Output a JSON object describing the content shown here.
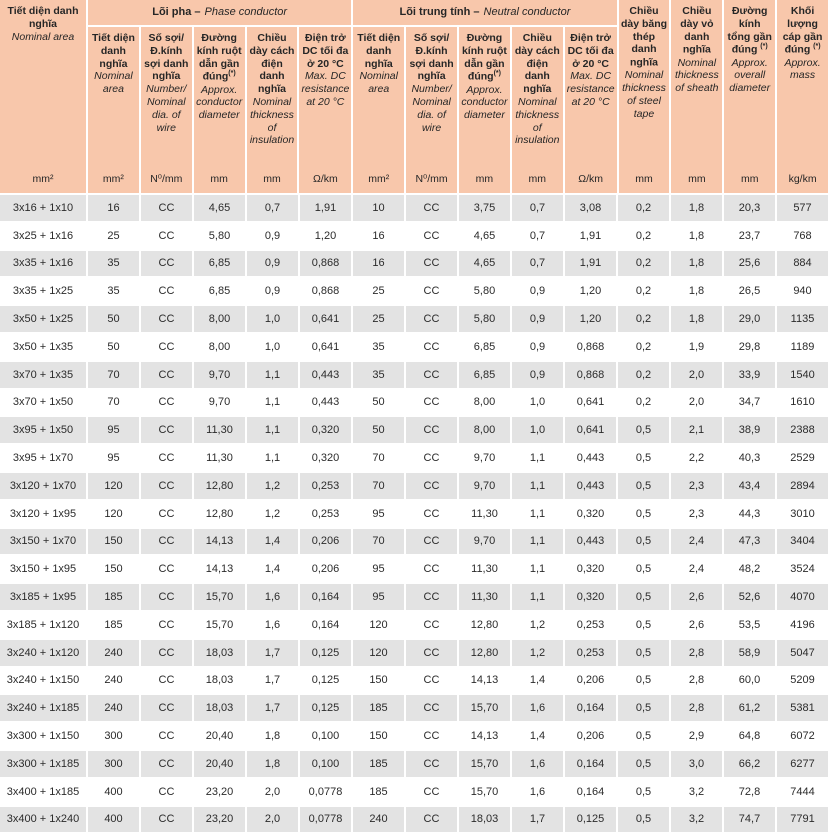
{
  "colors": {
    "header_bg": "#f8c7ab",
    "row_alt_bg": "#e3e3e3",
    "row_bg": "#ffffff",
    "separator": "#ffffff",
    "text": "#262626"
  },
  "table": {
    "corner": {
      "vi": "Tiết diện danh nghĩa",
      "en": "Nominal area",
      "unit": "mm²"
    },
    "groups": [
      {
        "vi": "Lõi pha –",
        "en": "Phase conductor"
      },
      {
        "vi": "Lõi trung tính –",
        "en": "Neutral conductor"
      }
    ],
    "phase_cols": [
      {
        "vi": "Tiết diện danh nghĩa",
        "sup": "",
        "en": "Nominal area",
        "unit": "mm²"
      },
      {
        "vi": "Số sợi/ Đ.kính sợi danh nghĩa",
        "sup": "",
        "en": "Number/ Nominal dia. of wire",
        "unit": "N⁰/mm"
      },
      {
        "vi": "Đường kính ruột dẫn gần đúng",
        "sup": "(*)",
        "en": "Approx. conductor diameter",
        "unit": "mm"
      },
      {
        "vi": "Chiều dày cách điện danh nghĩa",
        "sup": "",
        "en": "Nominal thickness of insulation",
        "unit": "mm"
      },
      {
        "vi": "Điện trở DC tối đa ở 20 °C",
        "sup": "",
        "en": "Max. DC resistance at 20 °C",
        "unit": "Ω/km"
      }
    ],
    "neutral_cols": [
      {
        "vi": "Tiết diện danh nghĩa",
        "sup": "",
        "en": "Nominal area",
        "unit": "mm²"
      },
      {
        "vi": "Số sợi/ Đ.kính sợi danh nghĩa",
        "sup": "",
        "en": "Number/ Nominal dia. of wire",
        "unit": "N⁰/mm"
      },
      {
        "vi": "Đường kính ruột dẫn gần đúng",
        "sup": "(*)",
        "en": "Approx. conductor diameter",
        "unit": "mm"
      },
      {
        "vi": "Chiều dày cách điện danh nghĩa",
        "sup": "",
        "en": "Nominal thickness of insulation",
        "unit": "mm"
      },
      {
        "vi": "Điện trở DC tối đa ở 20 °C",
        "sup": "",
        "en": "Max. DC resistance at 20 °C",
        "unit": "Ω/km"
      }
    ],
    "outer_cols": [
      {
        "vi": "Chiều dày băng thép danh nghĩa",
        "sup": "",
        "en": "Nominal thickness of steel tape",
        "unit": "mm"
      },
      {
        "vi": "Chiều dày vỏ danh nghĩa",
        "sup": "",
        "en": "Nominal thickness of sheath",
        "unit": "mm"
      },
      {
        "vi": "Đường kính tổng gần đúng",
        "sup": "(*)",
        "en": "Approx. overall diameter",
        "unit": "mm"
      },
      {
        "vi": "Khối lượng cáp gần đúng",
        "sup": "(*)",
        "en": "Approx. mass",
        "unit": "kg/km"
      }
    ],
    "rows": [
      [
        "3x16 + 1x10",
        "16",
        "CC",
        "4,65",
        "0,7",
        "1,91",
        "10",
        "CC",
        "3,75",
        "0,7",
        "3,08",
        "0,2",
        "1,8",
        "20,3",
        "577"
      ],
      [
        "3x25 + 1x16",
        "25",
        "CC",
        "5,80",
        "0,9",
        "1,20",
        "16",
        "CC",
        "4,65",
        "0,7",
        "1,91",
        "0,2",
        "1,8",
        "23,7",
        "768"
      ],
      [
        "3x35 + 1x16",
        "35",
        "CC",
        "6,85",
        "0,9",
        "0,868",
        "16",
        "CC",
        "4,65",
        "0,7",
        "1,91",
        "0,2",
        "1,8",
        "25,6",
        "884"
      ],
      [
        "3x35 + 1x25",
        "35",
        "CC",
        "6,85",
        "0,9",
        "0,868",
        "25",
        "CC",
        "5,80",
        "0,9",
        "1,20",
        "0,2",
        "1,8",
        "26,5",
        "940"
      ],
      [
        "3x50 + 1x25",
        "50",
        "CC",
        "8,00",
        "1,0",
        "0,641",
        "25",
        "CC",
        "5,80",
        "0,9",
        "1,20",
        "0,2",
        "1,8",
        "29,0",
        "1135"
      ],
      [
        "3x50 + 1x35",
        "50",
        "CC",
        "8,00",
        "1,0",
        "0,641",
        "35",
        "CC",
        "6,85",
        "0,9",
        "0,868",
        "0,2",
        "1,9",
        "29,8",
        "1189"
      ],
      [
        "3x70 + 1x35",
        "70",
        "CC",
        "9,70",
        "1,1",
        "0,443",
        "35",
        "CC",
        "6,85",
        "0,9",
        "0,868",
        "0,2",
        "2,0",
        "33,9",
        "1540"
      ],
      [
        "3x70 + 1x50",
        "70",
        "CC",
        "9,70",
        "1,1",
        "0,443",
        "50",
        "CC",
        "8,00",
        "1,0",
        "0,641",
        "0,2",
        "2,0",
        "34,7",
        "1610"
      ],
      [
        "3x95 + 1x50",
        "95",
        "CC",
        "11,30",
        "1,1",
        "0,320",
        "50",
        "CC",
        "8,00",
        "1,0",
        "0,641",
        "0,5",
        "2,1",
        "38,9",
        "2388"
      ],
      [
        "3x95 + 1x70",
        "95",
        "CC",
        "11,30",
        "1,1",
        "0,320",
        "70",
        "CC",
        "9,70",
        "1,1",
        "0,443",
        "0,5",
        "2,2",
        "40,3",
        "2529"
      ],
      [
        "3x120 + 1x70",
        "120",
        "CC",
        "12,80",
        "1,2",
        "0,253",
        "70",
        "CC",
        "9,70",
        "1,1",
        "0,443",
        "0,5",
        "2,3",
        "43,4",
        "2894"
      ],
      [
        "3x120 + 1x95",
        "120",
        "CC",
        "12,80",
        "1,2",
        "0,253",
        "95",
        "CC",
        "11,30",
        "1,1",
        "0,320",
        "0,5",
        "2,3",
        "44,3",
        "3010"
      ],
      [
        "3x150 + 1x70",
        "150",
        "CC",
        "14,13",
        "1,4",
        "0,206",
        "70",
        "CC",
        "9,70",
        "1,1",
        "0,443",
        "0,5",
        "2,4",
        "47,3",
        "3404"
      ],
      [
        "3x150 + 1x95",
        "150",
        "CC",
        "14,13",
        "1,4",
        "0,206",
        "95",
        "CC",
        "11,30",
        "1,1",
        "0,320",
        "0,5",
        "2,4",
        "48,2",
        "3524"
      ],
      [
        "3x185 + 1x95",
        "185",
        "CC",
        "15,70",
        "1,6",
        "0,164",
        "95",
        "CC",
        "11,30",
        "1,1",
        "0,320",
        "0,5",
        "2,6",
        "52,6",
        "4070"
      ],
      [
        "3x185 + 1x120",
        "185",
        "CC",
        "15,70",
        "1,6",
        "0,164",
        "120",
        "CC",
        "12,80",
        "1,2",
        "0,253",
        "0,5",
        "2,6",
        "53,5",
        "4196"
      ],
      [
        "3x240 + 1x120",
        "240",
        "CC",
        "18,03",
        "1,7",
        "0,125",
        "120",
        "CC",
        "12,80",
        "1,2",
        "0,253",
        "0,5",
        "2,8",
        "58,9",
        "5047"
      ],
      [
        "3x240 + 1x150",
        "240",
        "CC",
        "18,03",
        "1,7",
        "0,125",
        "150",
        "CC",
        "14,13",
        "1,4",
        "0,206",
        "0,5",
        "2,8",
        "60,0",
        "5209"
      ],
      [
        "3x240 + 1x185",
        "240",
        "CC",
        "18,03",
        "1,7",
        "0,125",
        "185",
        "CC",
        "15,70",
        "1,6",
        "0,164",
        "0,5",
        "2,8",
        "61,2",
        "5381"
      ],
      [
        "3x300 + 1x150",
        "300",
        "CC",
        "20,40",
        "1,8",
        "0,100",
        "150",
        "CC",
        "14,13",
        "1,4",
        "0,206",
        "0,5",
        "2,9",
        "64,8",
        "6072"
      ],
      [
        "3x300 + 1x185",
        "300",
        "CC",
        "20,40",
        "1,8",
        "0,100",
        "185",
        "CC",
        "15,70",
        "1,6",
        "0,164",
        "0,5",
        "3,0",
        "66,2",
        "6277"
      ],
      [
        "3x400 + 1x185",
        "400",
        "CC",
        "23,20",
        "2,0",
        "0,0778",
        "185",
        "CC",
        "15,70",
        "1,6",
        "0,164",
        "0,5",
        "3,2",
        "72,8",
        "7444"
      ],
      [
        "3x400 + 1x240",
        "400",
        "CC",
        "23,20",
        "2,0",
        "0,0778",
        "240",
        "CC",
        "18,03",
        "1,7",
        "0,125",
        "0,5",
        "3,2",
        "74,7",
        "7791"
      ]
    ]
  }
}
